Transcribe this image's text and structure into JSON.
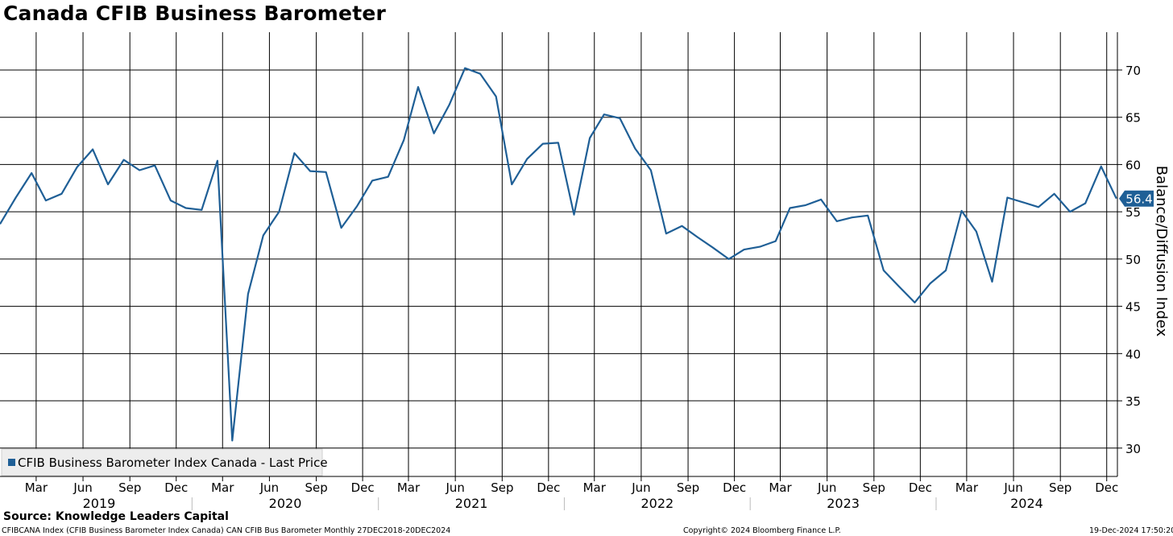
{
  "title": "Canada CFIB Business Barometer",
  "source": "Source: Knowledge Leaders Capital",
  "footer": {
    "left": "CFIBCANA Index (CFIB Business Barometer Index Canada) CAN CFIB Bus Barometer  Monthly 27DEC2018-20DEC2024",
    "center": "Copyright© 2024 Bloomberg Finance L.P.",
    "right": "19-Dec-2024 17:50:20"
  },
  "colors": {
    "series": "#1f5f96",
    "grid": "#000000",
    "legend_bg": "#ededed",
    "value_box": "#1f5f96"
  },
  "chart_data": {
    "type": "line",
    "title": "Canada CFIB Business Barometer",
    "ylabel": "Balance/Diffusion Index",
    "ylim": [
      27,
      74
    ],
    "yticks": [
      30,
      35,
      40,
      45,
      50,
      55,
      60,
      65,
      70
    ],
    "xlim": [
      "2018-12-20",
      "2024-12-22"
    ],
    "grid": true,
    "legend_position": "bottom-left",
    "last_value_label": "56.4",
    "x_month_ticks": [
      {
        "date": "2019-03-01",
        "label": "Mar"
      },
      {
        "date": "2019-06-01",
        "label": "Jun"
      },
      {
        "date": "2019-09-01",
        "label": "Sep"
      },
      {
        "date": "2019-12-01",
        "label": "Dec"
      },
      {
        "date": "2020-03-01",
        "label": "Mar"
      },
      {
        "date": "2020-06-01",
        "label": "Jun"
      },
      {
        "date": "2020-09-01",
        "label": "Sep"
      },
      {
        "date": "2020-12-01",
        "label": "Dec"
      },
      {
        "date": "2021-03-01",
        "label": "Mar"
      },
      {
        "date": "2021-06-01",
        "label": "Jun"
      },
      {
        "date": "2021-09-01",
        "label": "Sep"
      },
      {
        "date": "2021-12-01",
        "label": "Dec"
      },
      {
        "date": "2022-03-01",
        "label": "Mar"
      },
      {
        "date": "2022-06-01",
        "label": "Jun"
      },
      {
        "date": "2022-09-01",
        "label": "Sep"
      },
      {
        "date": "2022-12-01",
        "label": "Dec"
      },
      {
        "date": "2023-03-01",
        "label": "Mar"
      },
      {
        "date": "2023-06-01",
        "label": "Jun"
      },
      {
        "date": "2023-09-01",
        "label": "Sep"
      },
      {
        "date": "2023-12-01",
        "label": "Dec"
      },
      {
        "date": "2024-03-01",
        "label": "Mar"
      },
      {
        "date": "2024-06-01",
        "label": "Jun"
      },
      {
        "date": "2024-09-01",
        "label": "Sep"
      },
      {
        "date": "2024-12-01",
        "label": "Dec"
      }
    ],
    "x_year_labels": [
      {
        "label": "2019",
        "from": "2019-01-01",
        "to": "2020-01-01"
      },
      {
        "label": "2020",
        "from": "2020-01-01",
        "to": "2021-01-01"
      },
      {
        "label": "2021",
        "from": "2021-01-01",
        "to": "2022-01-01"
      },
      {
        "label": "2022",
        "from": "2022-01-01",
        "to": "2023-01-01"
      },
      {
        "label": "2023",
        "from": "2023-01-01",
        "to": "2024-01-01"
      },
      {
        "label": "2024",
        "from": "2024-01-01",
        "to": "2025-01-01"
      }
    ],
    "series": [
      {
        "name": "CFIB Business Barometer Index Canada - Last Price",
        "points": [
          [
            "2018-12-20",
            53.7
          ],
          [
            "2019-01-20",
            56.5
          ],
          [
            "2019-02-20",
            59.1
          ],
          [
            "2019-03-20",
            56.2
          ],
          [
            "2019-04-20",
            56.9
          ],
          [
            "2019-05-20",
            59.7
          ],
          [
            "2019-06-20",
            61.6
          ],
          [
            "2019-07-20",
            57.9
          ],
          [
            "2019-08-20",
            60.5
          ],
          [
            "2019-09-20",
            59.4
          ],
          [
            "2019-10-20",
            59.9
          ],
          [
            "2019-11-20",
            56.2
          ],
          [
            "2019-12-20",
            55.4
          ],
          [
            "2020-01-20",
            55.2
          ],
          [
            "2020-02-20",
            60.4
          ],
          [
            "2020-03-20",
            30.8
          ],
          [
            "2020-04-20",
            46.3
          ],
          [
            "2020-05-20",
            52.5
          ],
          [
            "2020-06-20",
            55.0
          ],
          [
            "2020-07-20",
            61.2
          ],
          [
            "2020-08-20",
            59.3
          ],
          [
            "2020-09-20",
            59.2
          ],
          [
            "2020-10-20",
            53.3
          ],
          [
            "2020-11-20",
            55.6
          ],
          [
            "2020-12-20",
            58.3
          ],
          [
            "2021-01-20",
            58.7
          ],
          [
            "2021-02-20",
            62.6
          ],
          [
            "2021-03-20",
            68.2
          ],
          [
            "2021-04-20",
            63.3
          ],
          [
            "2021-05-20",
            66.3
          ],
          [
            "2021-06-20",
            70.2
          ],
          [
            "2021-07-20",
            69.6
          ],
          [
            "2021-08-20",
            67.2
          ],
          [
            "2021-09-20",
            57.9
          ],
          [
            "2021-10-20",
            60.6
          ],
          [
            "2021-11-20",
            62.2
          ],
          [
            "2021-12-20",
            62.3
          ],
          [
            "2022-01-20",
            54.7
          ],
          [
            "2022-02-20",
            62.8
          ],
          [
            "2022-03-20",
            65.3
          ],
          [
            "2022-04-20",
            64.9
          ],
          [
            "2022-05-20",
            61.7
          ],
          [
            "2022-06-20",
            59.4
          ],
          [
            "2022-07-20",
            52.7
          ],
          [
            "2022-08-20",
            53.5
          ],
          [
            "2022-09-20",
            52.3
          ],
          [
            "2022-10-20",
            51.2
          ],
          [
            "2022-11-20",
            50.0
          ],
          [
            "2022-12-20",
            51.0
          ],
          [
            "2023-01-20",
            51.3
          ],
          [
            "2023-02-20",
            51.9
          ],
          [
            "2023-03-20",
            55.4
          ],
          [
            "2023-04-20",
            55.7
          ],
          [
            "2023-05-20",
            56.3
          ],
          [
            "2023-06-20",
            54.0
          ],
          [
            "2023-07-20",
            54.4
          ],
          [
            "2023-08-20",
            54.6
          ],
          [
            "2023-09-20",
            48.8
          ],
          [
            "2023-10-20",
            47.1
          ],
          [
            "2023-11-20",
            45.4
          ],
          [
            "2023-12-20",
            47.4
          ],
          [
            "2024-01-20",
            48.8
          ],
          [
            "2024-02-20",
            55.1
          ],
          [
            "2024-03-20",
            52.9
          ],
          [
            "2024-04-20",
            47.6
          ],
          [
            "2024-05-20",
            56.5
          ],
          [
            "2024-06-20",
            56.0
          ],
          [
            "2024-07-20",
            55.5
          ],
          [
            "2024-08-20",
            56.9
          ],
          [
            "2024-09-20",
            55.0
          ],
          [
            "2024-10-20",
            55.9
          ],
          [
            "2024-11-20",
            59.8
          ],
          [
            "2024-12-20",
            56.4
          ]
        ]
      }
    ]
  }
}
